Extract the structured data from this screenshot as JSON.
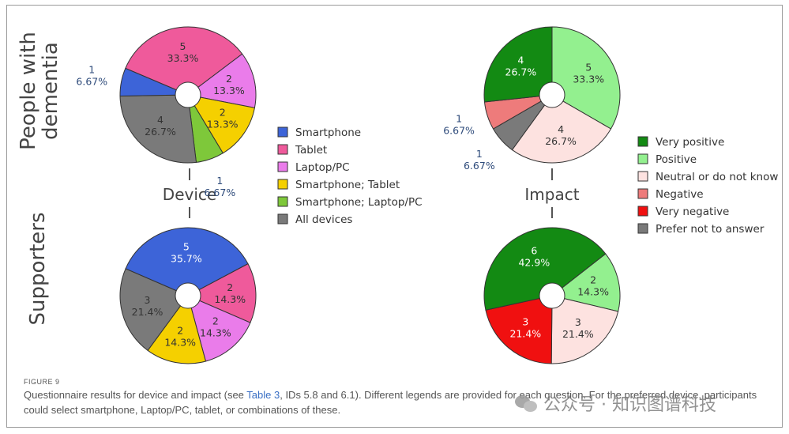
{
  "colors": {
    "smartphone": "#3d64d8",
    "tablet": "#ef5a9b",
    "laptop": "#ea7cea",
    "smartphone_tablet": "#f5d000",
    "smartphone_laptop": "#7ec83a",
    "all_devices": "#7a7a7a",
    "very_positive": "#138a13",
    "positive": "#93f08f",
    "neutral": "#fde2e0",
    "negative": "#ee7b7b",
    "very_negative": "#f01010",
    "prefer_not": "#7a7a7a"
  },
  "row_labels": {
    "people": [
      "People with",
      "dementia"
    ],
    "supporters": "Supporters"
  },
  "axis_titles": {
    "device": "Device",
    "impact": "Impact"
  },
  "device_legend": [
    {
      "label": "Smartphone",
      "color": "#3d64d8"
    },
    {
      "label": "Tablet",
      "color": "#ef5a9b"
    },
    {
      "label": "Laptop/PC",
      "color": "#ea7cea"
    },
    {
      "label": "Smartphone; Tablet",
      "color": "#f5d000"
    },
    {
      "label": "Smartphone; Laptop/PC",
      "color": "#7ec83a"
    },
    {
      "label": "All devices",
      "color": "#7a7a7a"
    }
  ],
  "impact_legend": [
    {
      "label": "Very positive",
      "color": "#138a13"
    },
    {
      "label": "Positive",
      "color": "#93f08f"
    },
    {
      "label": "Neutral or do not know",
      "color": "#fde2e0"
    },
    {
      "label": "Negative",
      "color": "#ee7b7b"
    },
    {
      "label": "Very negative",
      "color": "#f01010"
    },
    {
      "label": "Prefer not to answer",
      "color": "#7a7a7a"
    }
  ],
  "chart_data": [
    {
      "type": "pie",
      "group": "People with dementia",
      "question": "Device",
      "slices": [
        {
          "category": "Smartphone",
          "count": 1,
          "percent": "6.67%"
        },
        {
          "category": "Tablet",
          "count": 5,
          "percent": "33.3%"
        },
        {
          "category": "Laptop/PC",
          "count": 2,
          "percent": "13.3%"
        },
        {
          "category": "Smartphone; Tablet",
          "count": 2,
          "percent": "13.3%"
        },
        {
          "category": "Smartphone; Laptop/PC",
          "count": 1,
          "percent": "6.67%"
        },
        {
          "category": "All devices",
          "count": 4,
          "percent": "26.7%"
        }
      ]
    },
    {
      "type": "pie",
      "group": "Supporters",
      "question": "Device",
      "slices": [
        {
          "category": "Smartphone",
          "count": 5,
          "percent": "35.7%"
        },
        {
          "category": "Tablet",
          "count": 2,
          "percent": "14.3%"
        },
        {
          "category": "Laptop/PC",
          "count": 2,
          "percent": "14.3%"
        },
        {
          "category": "Smartphone; Tablet",
          "count": 2,
          "percent": "14.3%"
        },
        {
          "category": "All devices",
          "count": 3,
          "percent": "21.4%"
        }
      ]
    },
    {
      "type": "pie",
      "group": "People with dementia",
      "question": "Impact",
      "slices": [
        {
          "category": "Very positive",
          "count": 4,
          "percent": "26.7%"
        },
        {
          "category": "Positive",
          "count": 5,
          "percent": "33.3%"
        },
        {
          "category": "Neutral or do not know",
          "count": 4,
          "percent": "26.7%"
        },
        {
          "category": "Negative",
          "count": 1,
          "percent": "6.67%"
        },
        {
          "category": "Prefer not to answer",
          "count": 1,
          "percent": "6.67%"
        }
      ]
    },
    {
      "type": "pie",
      "group": "Supporters",
      "question": "Impact",
      "slices": [
        {
          "category": "Very positive",
          "count": 6,
          "percent": "42.9%"
        },
        {
          "category": "Positive",
          "count": 2,
          "percent": "14.3%"
        },
        {
          "category": "Neutral or do not know",
          "count": 3,
          "percent": "21.4%"
        },
        {
          "category": "Very negative",
          "count": 3,
          "percent": "21.4%"
        }
      ]
    }
  ],
  "caption": {
    "figure_label": "FIGURE 9",
    "text_before_link": "Questionnaire results for device and impact (see ",
    "link_text": "Table 3",
    "text_after_link": ", IDs 5.8 and 6.1). Different legends are provided for each question. For the preferred device, participants could select smartphone, Laptop/PC, tablet, or combinations of these."
  },
  "watermark": "公众号 · 知识图谱科技"
}
